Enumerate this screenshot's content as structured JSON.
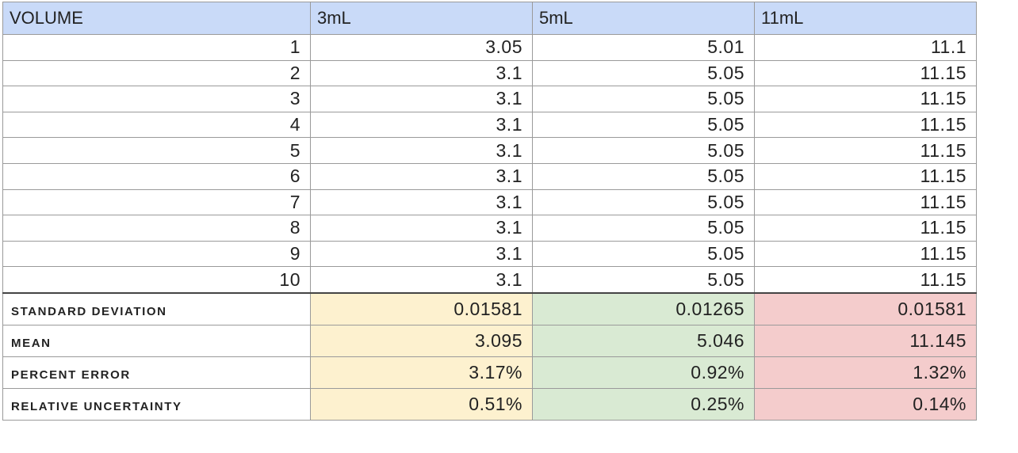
{
  "table": {
    "headers": [
      "VOLUME",
      "3mL",
      "5mL",
      "11mL"
    ],
    "rows": [
      [
        "1",
        "3.05",
        "5.01",
        "11.1"
      ],
      [
        "2",
        "3.1",
        "5.05",
        "11.15"
      ],
      [
        "3",
        "3.1",
        "5.05",
        "11.15"
      ],
      [
        "4",
        "3.1",
        "5.05",
        "11.15"
      ],
      [
        "5",
        "3.1",
        "5.05",
        "11.15"
      ],
      [
        "6",
        "3.1",
        "5.05",
        "11.15"
      ],
      [
        "7",
        "3.1",
        "5.05",
        "11.15"
      ],
      [
        "8",
        "3.1",
        "5.05",
        "11.15"
      ],
      [
        "9",
        "3.1",
        "5.05",
        "11.15"
      ],
      [
        "10",
        "3.1",
        "5.05",
        "11.15"
      ]
    ],
    "stats": [
      [
        "STANDARD DEVIATION",
        "0.01581",
        "0.01265",
        "0.01581"
      ],
      [
        "MEAN",
        "3.095",
        "5.046",
        "11.145"
      ],
      [
        "PERCENT ERROR",
        "3.17%",
        "0.92%",
        "1.32%"
      ],
      [
        "RELATIVE UNCERTAINTY",
        "0.51%",
        "0.25%",
        "0.14%"
      ]
    ]
  },
  "colors": {
    "header_bg": "#c9daf8",
    "col_3ml_fill": "#fdf1cf",
    "col_5ml_fill": "#d9ead3",
    "col_11ml_fill": "#f4cccc"
  }
}
